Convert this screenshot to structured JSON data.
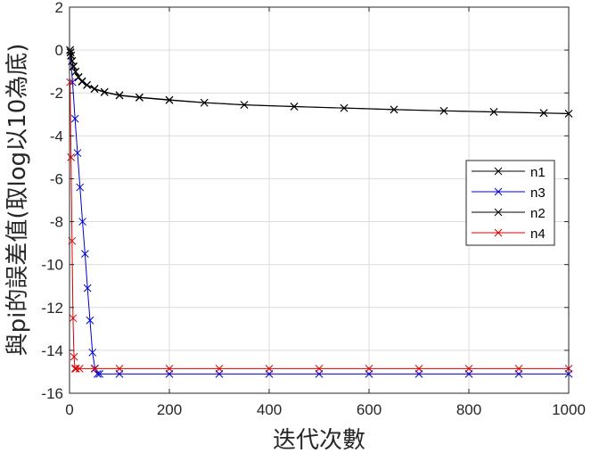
{
  "chart_data": {
    "type": "line",
    "title": "",
    "xlabel": "迭代次數",
    "ylabel": "與pi的誤差值(取log以10為底)",
    "xlim": [
      0,
      1000
    ],
    "ylim": [
      -16,
      2
    ],
    "xticks": [
      "0",
      "200",
      "400",
      "600",
      "800",
      "1000"
    ],
    "xtick_values": [
      0,
      200,
      400,
      600,
      800,
      1000
    ],
    "yticks": [
      "2",
      "0",
      "-2",
      "-4",
      "-6",
      "-8",
      "-10",
      "-12",
      "-14",
      "-16"
    ],
    "ytick_values": [
      2,
      0,
      -2,
      -4,
      -6,
      -8,
      -10,
      -12,
      -14,
      -16
    ],
    "grid": true,
    "legend_position": "right",
    "series": [
      {
        "name": "n1",
        "color": "#000000",
        "marker": "x",
        "x": [
          1,
          2,
          3,
          5,
          8,
          12,
          18,
          25,
          35,
          50,
          70,
          100,
          140,
          200,
          270,
          350,
          450,
          550,
          650,
          750,
          850,
          950,
          1000
        ],
        "y": [
          0.0,
          -0.1,
          -0.25,
          -0.5,
          -0.75,
          -1.0,
          -1.25,
          -1.45,
          -1.62,
          -1.8,
          -1.95,
          -2.1,
          -2.2,
          -2.32,
          -2.45,
          -2.55,
          -2.63,
          -2.7,
          -2.77,
          -2.83,
          -2.88,
          -2.93,
          -2.96
        ]
      },
      {
        "name": "n3",
        "color": "#0000cc",
        "marker": "x",
        "x": [
          1,
          6,
          11,
          16,
          21,
          26,
          31,
          36,
          41,
          46,
          51,
          56,
          60,
          100,
          200,
          300,
          400,
          500,
          600,
          700,
          800,
          900,
          1000
        ],
        "y": [
          0.0,
          -1.5,
          -3.2,
          -4.8,
          -6.4,
          -8.0,
          -9.5,
          -11.1,
          -12.6,
          -14.1,
          -14.85,
          -15.1,
          -15.1,
          -15.1,
          -15.1,
          -15.1,
          -15.1,
          -15.1,
          -15.1,
          -15.1,
          -15.1,
          -15.1,
          -15.1
        ]
      },
      {
        "name": "n2",
        "color": "#000000",
        "marker": "x",
        "x": [
          1,
          2,
          3,
          5,
          8,
          12,
          18,
          25,
          35,
          50,
          70,
          100,
          140,
          200,
          270,
          350,
          450,
          550,
          650,
          750,
          850,
          950,
          1000
        ],
        "y": [
          0.0,
          -0.12,
          -0.27,
          -0.52,
          -0.78,
          -1.02,
          -1.28,
          -1.48,
          -1.64,
          -1.82,
          -1.97,
          -2.12,
          -2.22,
          -2.34,
          -2.46,
          -2.56,
          -2.64,
          -2.71,
          -2.78,
          -2.84,
          -2.89,
          -2.94,
          -2.97
        ]
      },
      {
        "name": "n4",
        "color": "#dd0000",
        "marker": "x",
        "x": [
          1,
          3,
          5,
          7,
          9,
          11,
          13,
          20,
          50,
          100,
          200,
          300,
          400,
          500,
          600,
          700,
          800,
          900,
          1000
        ],
        "y": [
          -1.5,
          -5.0,
          -8.9,
          -12.5,
          -14.3,
          -14.85,
          -14.85,
          -14.85,
          -14.85,
          -14.85,
          -14.85,
          -14.85,
          -14.85,
          -14.85,
          -14.85,
          -14.85,
          -14.85,
          -14.85,
          -14.85
        ]
      }
    ]
  }
}
